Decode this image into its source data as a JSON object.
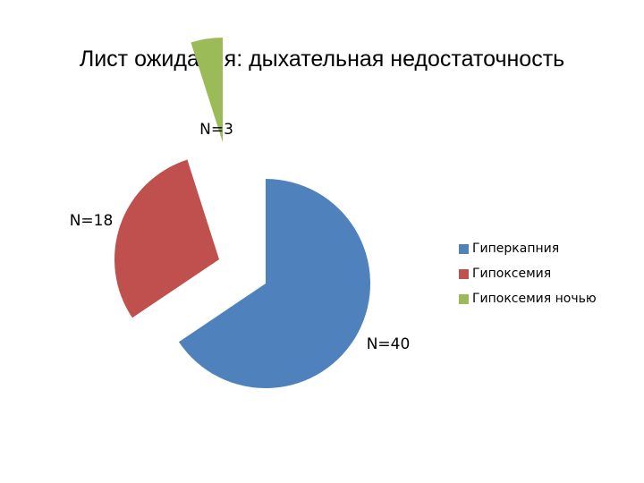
{
  "chart_data": {
    "type": "pie",
    "title": "Лист ожидания: дыхательная недостаточность",
    "categories": [
      "Гиперкапния",
      "Гипоксемия",
      "Гипоксемия ночью"
    ],
    "values": [
      40,
      18,
      3
    ],
    "data_labels": [
      "N=40",
      "N=18",
      "N=3"
    ],
    "colors": [
      "#4f81bd",
      "#c0504d",
      "#9bbb59"
    ],
    "exploded": true,
    "legend_position": "right"
  }
}
